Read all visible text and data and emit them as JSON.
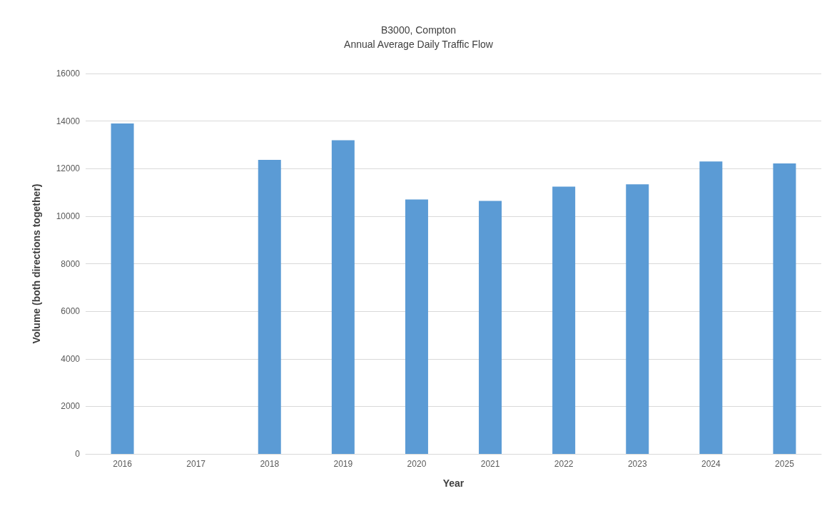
{
  "chart_data": {
    "type": "bar",
    "title": "B3000, Compton",
    "subtitle": "Annual Average Daily Traffic Flow",
    "xlabel": "Year",
    "ylabel": "Volume (both directions together)",
    "categories": [
      "2016",
      "2017",
      "2018",
      "2019",
      "2020",
      "2021",
      "2022",
      "2023",
      "2024",
      "2025"
    ],
    "values": [
      13900,
      null,
      12370,
      13190,
      10700,
      10640,
      11240,
      11340,
      12300,
      12220
    ],
    "color": "#5b9bd5",
    "ylim": [
      0,
      16000
    ],
    "yticks": [
      0,
      2000,
      4000,
      6000,
      8000,
      10000,
      12000,
      14000,
      16000
    ],
    "grid": "y"
  }
}
